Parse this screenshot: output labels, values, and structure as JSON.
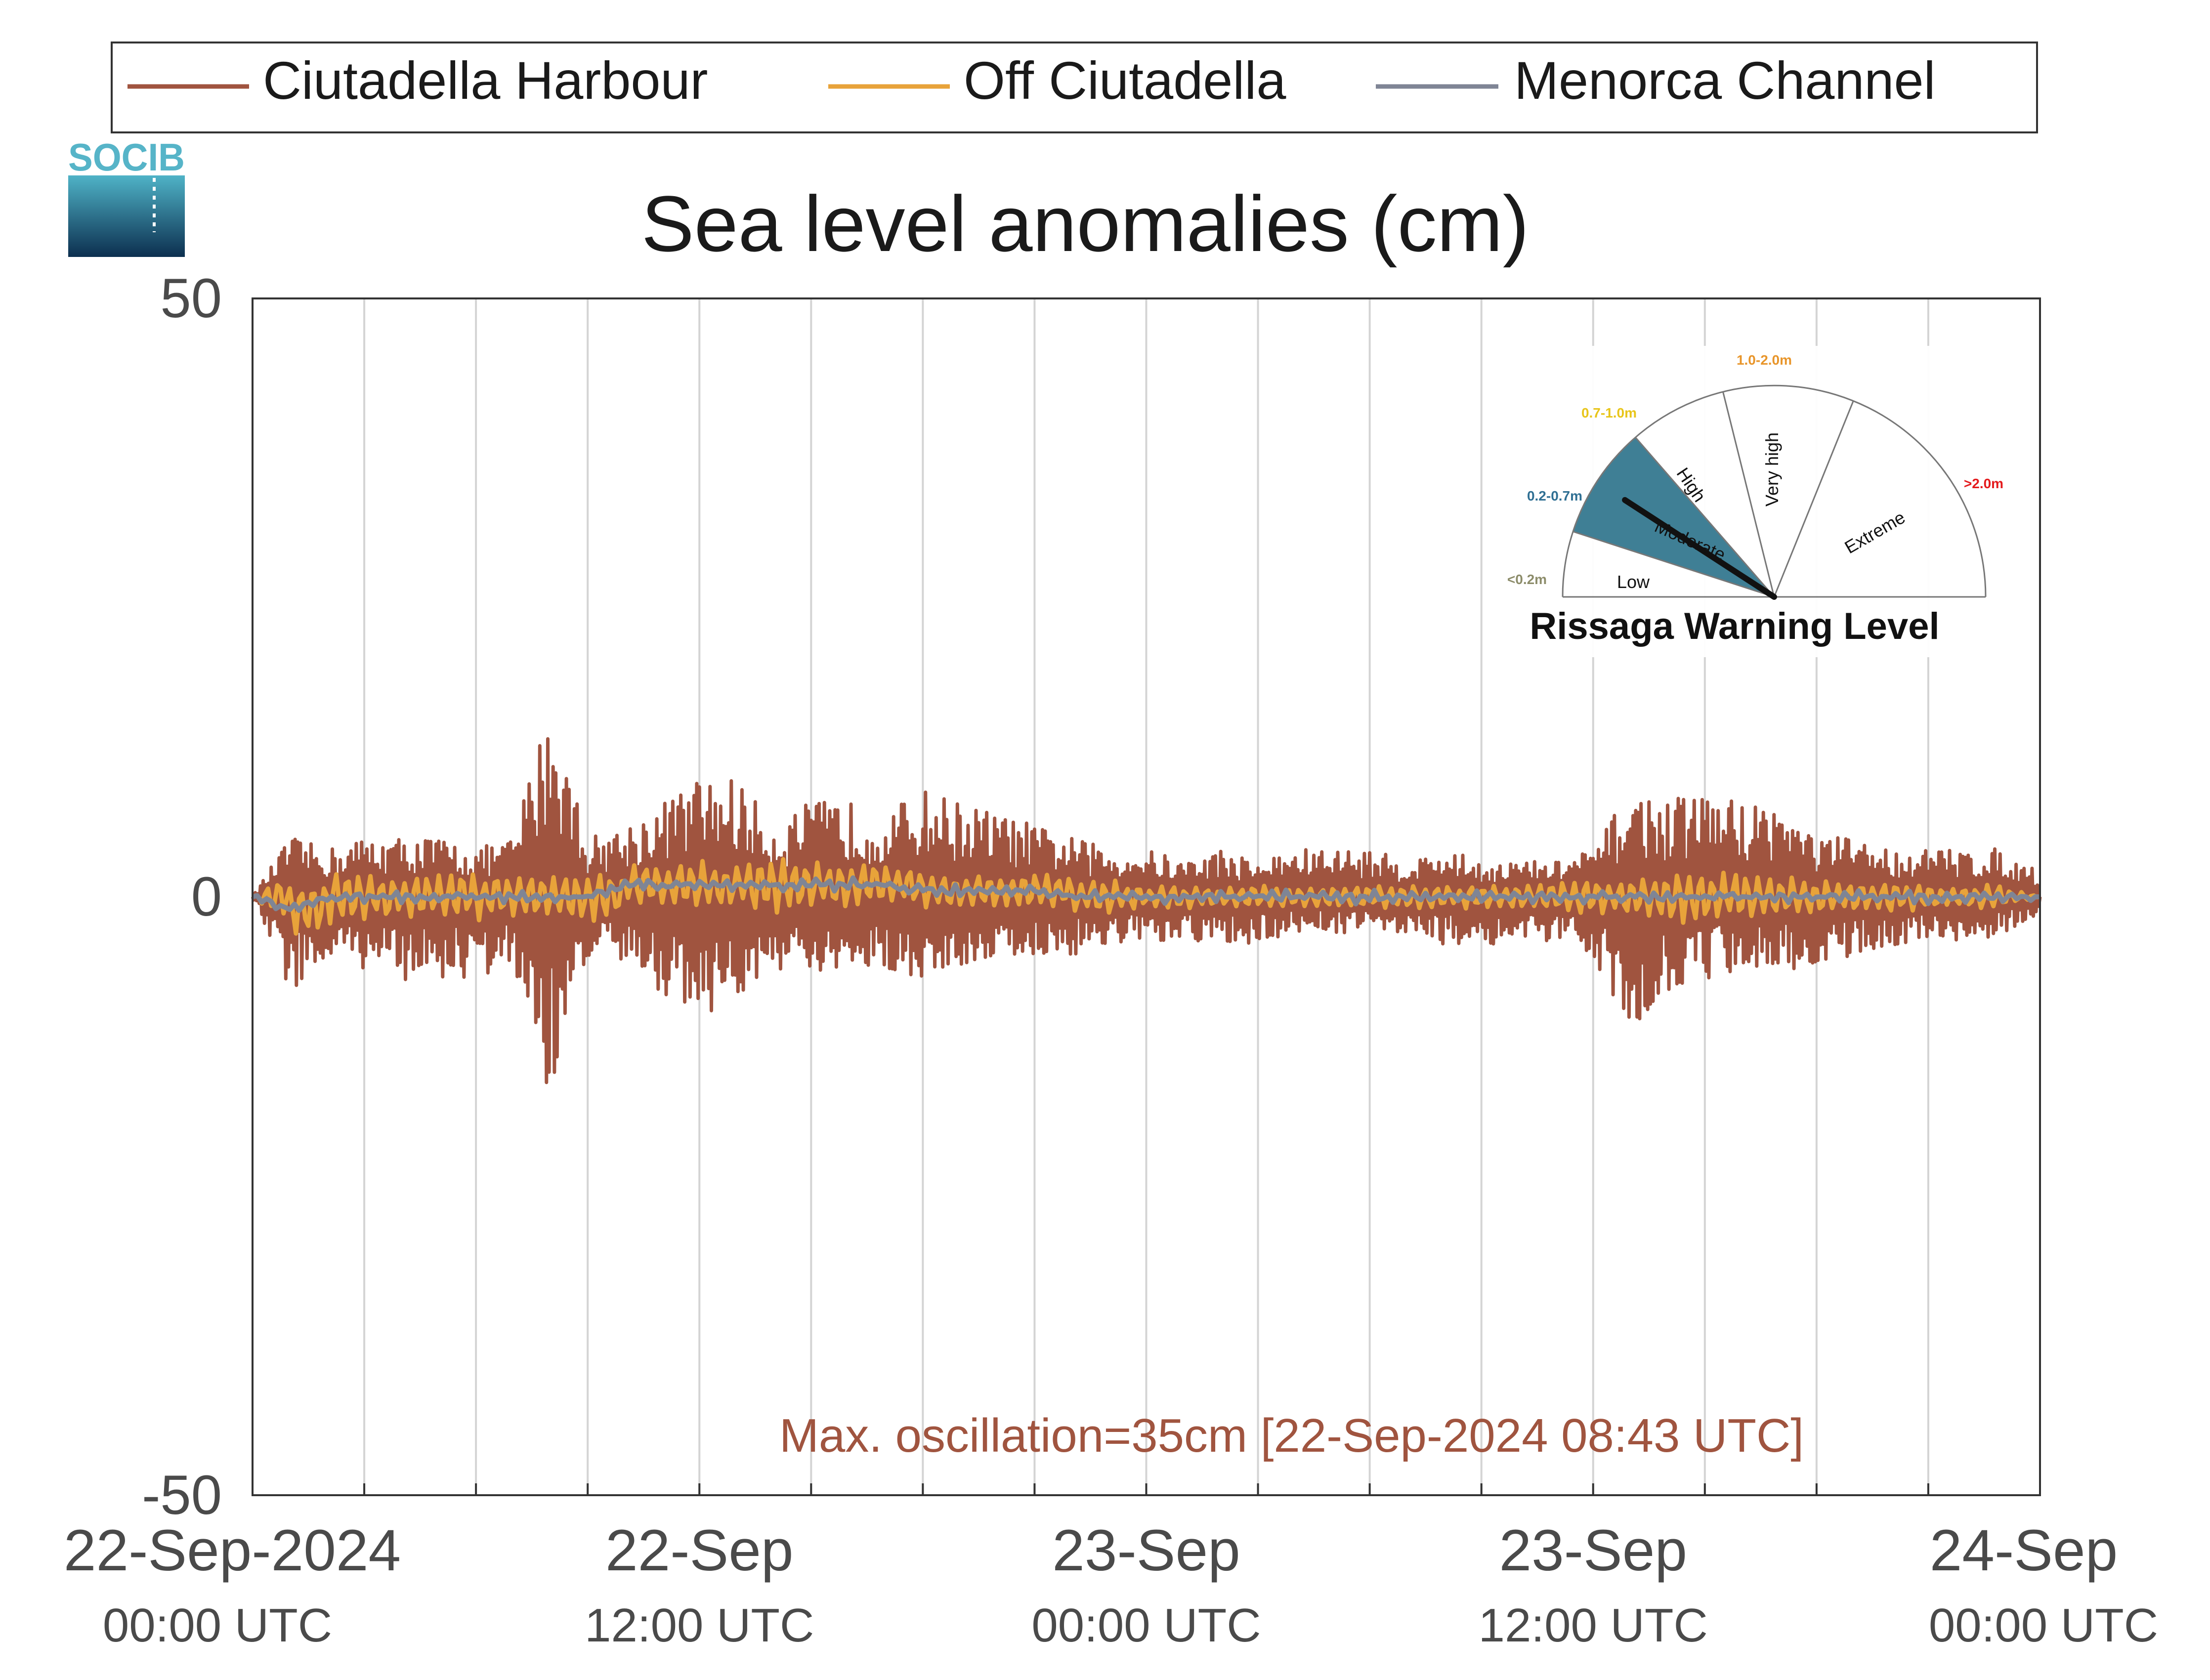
{
  "colors": {
    "ciutadella_harbour": "#A0543F",
    "off_ciutadella": "#E8A33A",
    "menorca_channel": "#7F8595",
    "axis": "#4a4a4a",
    "grid": "#d4d4d4",
    "annotation": "#A0543F",
    "gauge_moderate_fill": "#3F7F95",
    "label_low": "#8c8c6a",
    "label_moderate": "#2f6f93",
    "label_high": "#e8c51a",
    "label_very_high": "#e8952a",
    "label_extreme": "#e41a1c",
    "socib_logo": "#56b4c8"
  },
  "logo": {
    "text": "SOCIB"
  },
  "chart_data": {
    "type": "line",
    "title": "Sea level anomalies (cm)",
    "xlabel": "",
    "ylabel": "",
    "ylim": [
      -50,
      50
    ],
    "yticks": [
      "50",
      "0",
      "-50"
    ],
    "xlim": [
      "2024-09-22T00:00Z",
      "2024-09-24T00:00Z"
    ],
    "xtick_labels": [
      {
        "date": "22-Sep-2024",
        "time": "00:00 UTC",
        "at": "2024-09-22T00:00Z"
      },
      {
        "date": "22-Sep",
        "time": "12:00 UTC",
        "at": "2024-09-22T12:00Z"
      },
      {
        "date": "23-Sep",
        "time": "00:00 UTC",
        "at": "2024-09-23T00:00Z"
      },
      {
        "date": "23-Sep",
        "time": "12:00 UTC",
        "at": "2024-09-23T12:00Z"
      },
      {
        "date": "24-Sep",
        "time": "00:00 UTC",
        "at": "2024-09-24T00:00Z"
      }
    ],
    "grid": "vertical, every 3 hours",
    "legend": {
      "placement": "top"
    },
    "series_hourly_envelope_note": "",
    "series": [
      {
        "name": "Ciutadella Harbour",
        "hourly_time": [
          "00:00",
          "01:00",
          "02:00",
          "03:00",
          "04:00",
          "05:00",
          "06:00",
          "07:00",
          "08:00",
          "09:00",
          "10:00",
          "11:00",
          "12:00",
          "13:00",
          "14:00",
          "15:00",
          "16:00",
          "17:00",
          "18:00",
          "19:00",
          "20:00",
          "21:00",
          "22:00",
          "23:00",
          "00:00",
          "01:00",
          "02:00",
          "03:00",
          "04:00",
          "05:00",
          "06:00",
          "07:00",
          "08:00",
          "09:00",
          "10:00",
          "11:00",
          "12:00",
          "13:00",
          "14:00",
          "15:00",
          "16:00",
          "17:00",
          "18:00",
          "19:00",
          "20:00",
          "21:00",
          "22:00",
          "23:00",
          "00:00"
        ],
        "hourly_max": [
          0,
          5,
          4,
          5,
          5,
          5,
          4,
          5,
          17,
          5,
          6,
          8,
          10,
          10,
          6,
          8,
          8,
          7,
          9,
          8,
          7,
          6,
          5,
          4,
          4,
          3,
          4,
          3,
          4,
          4,
          4,
          3,
          4,
          3,
          3,
          3,
          4,
          9,
          8,
          9,
          8,
          8,
          5,
          5,
          4,
          4,
          4,
          4,
          2
        ],
        "hourly_min": [
          0,
          -8,
          -6,
          -6,
          -7,
          -7,
          -7,
          -6,
          -17,
          -5,
          -6,
          -8,
          -10,
          -9,
          -6,
          -7,
          -7,
          -6,
          -7,
          -6,
          -5,
          -5,
          -5,
          -4,
          -4,
          -4,
          -4,
          -4,
          -3,
          -3,
          -3,
          -3,
          -4,
          -4,
          -4,
          -4,
          -5,
          -11,
          -8,
          -7,
          -6,
          -6,
          -6,
          -5,
          -4,
          -4,
          -4,
          -3,
          -2
        ]
      },
      {
        "name": "Off Ciutadella",
        "hourly_amplitude": [
          0,
          2.5,
          2.5,
          2,
          2,
          2,
          2,
          2,
          2,
          2,
          2,
          2,
          2,
          2,
          2.5,
          2,
          2,
          2,
          1.5,
          1.5,
          1.5,
          1.5,
          1.5,
          1.5,
          1,
          1,
          1,
          1,
          1,
          1,
          1,
          1,
          1,
          1,
          1,
          1.5,
          1.5,
          1.5,
          2,
          2.5,
          2,
          2,
          1.5,
          1.5,
          1.5,
          1,
          1,
          1,
          0
        ]
      },
      {
        "name": "Menorca Channel",
        "hourly_mean": [
          0,
          -1,
          0,
          0,
          0,
          0,
          0,
          0,
          0,
          0,
          1,
          1,
          1,
          1,
          1,
          1,
          1,
          1,
          0.5,
          0.5,
          0.5,
          0.5,
          0,
          0,
          0,
          0,
          0,
          0,
          0,
          0,
          0,
          0,
          0,
          0,
          0,
          0,
          0,
          0,
          0,
          0,
          0,
          0,
          0,
          0,
          0,
          0,
          0,
          0,
          0
        ]
      }
    ],
    "annotation": "Max. oscillation=35cm [22-Sep-2024 08:43 UTC]"
  },
  "gauge": {
    "title": "Rissaga Warning Level",
    "current_level": "Moderate",
    "sectors": [
      {
        "name": "Low",
        "range": "<0.2m"
      },
      {
        "name": "Moderate",
        "range": "0.2-0.7m"
      },
      {
        "name": "High",
        "range": "0.7-1.0m"
      },
      {
        "name": "Very high",
        "range": "1.0-2.0m"
      },
      {
        "name": "Extreme",
        "range": ">2.0m"
      }
    ]
  }
}
